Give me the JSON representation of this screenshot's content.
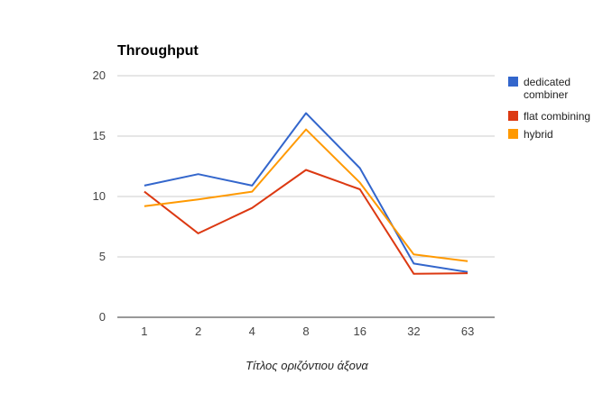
{
  "chart_data": {
    "type": "line",
    "title": "Throughput",
    "xlabel": "Τίτλος οριζόντιου άξονα",
    "ylabel": "",
    "categories": [
      "1",
      "2",
      "4",
      "8",
      "16",
      "32",
      "63"
    ],
    "ylim": [
      0,
      20
    ],
    "yticks": [
      0,
      5,
      10,
      15,
      20
    ],
    "grid": true,
    "legend_position": "right",
    "series": [
      {
        "name_lines": [
          "dedicated",
          "combiner"
        ],
        "color": "#3366cc",
        "values": [
          10.9,
          11.85,
          10.9,
          16.9,
          12.35,
          4.45,
          3.75
        ]
      },
      {
        "name_lines": [
          "flat combining"
        ],
        "color": "#dc3912",
        "values": [
          10.4,
          6.95,
          9.05,
          12.2,
          10.6,
          3.6,
          3.65
        ]
      },
      {
        "name_lines": [
          "hybrid"
        ],
        "color": "#ff9900",
        "values": [
          9.2,
          9.75,
          10.4,
          15.55,
          11.15,
          5.2,
          4.65
        ]
      }
    ]
  }
}
